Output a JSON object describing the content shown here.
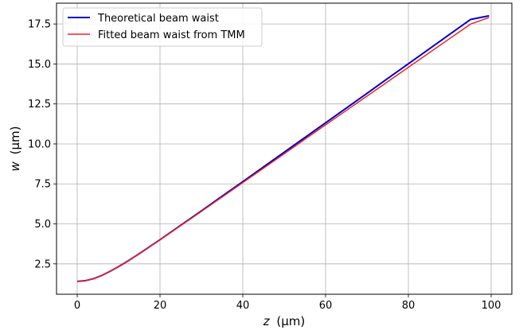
{
  "chart_data": {
    "type": "line",
    "xlabel_var": "z",
    "xlabel_unit": "(μm)",
    "ylabel_var": "w",
    "ylabel_unit": "(μm)",
    "xlim": [
      -5,
      105
    ],
    "ylim": [
      0.6,
      18.8
    ],
    "xticks": [
      0,
      20,
      40,
      60,
      80,
      100
    ],
    "yticks": [
      2.5,
      5.0,
      7.5,
      10.0,
      12.5,
      15.0,
      17.5
    ],
    "xtick_labels": [
      "0",
      "20",
      "40",
      "60",
      "80",
      "100"
    ],
    "ytick_labels": [
      "2.5",
      "5.0",
      "7.5",
      "10.0",
      "12.5",
      "15.0",
      "17.5"
    ],
    "grid": true,
    "legend_position": "top-left",
    "series": [
      {
        "name": "Theoretical beam waist",
        "color": "#0000cc",
        "x": [
          0,
          2,
          4,
          6,
          8,
          10,
          12,
          14,
          16,
          18,
          20,
          25,
          30,
          35,
          40,
          45,
          50,
          55,
          60,
          65,
          70,
          75,
          80,
          85,
          90,
          95,
          99.5
        ],
        "y": [
          1.4,
          1.45,
          1.58,
          1.78,
          2.04,
          2.33,
          2.64,
          2.97,
          3.31,
          3.66,
          4.01,
          4.91,
          5.81,
          6.73,
          7.64,
          8.56,
          9.48,
          10.4,
          11.32,
          12.24,
          13.16,
          14.09,
          15.01,
          15.93,
          16.86,
          17.78,
          18.01
        ]
      },
      {
        "name": "Fitted beam waist from TMM",
        "color": "#ee2222",
        "x": [
          0,
          2,
          4,
          6,
          8,
          10,
          12,
          14,
          16,
          18,
          20,
          25,
          30,
          35,
          40,
          45,
          50,
          55,
          60,
          65,
          70,
          75,
          80,
          85,
          90,
          95,
          99.5
        ],
        "y": [
          1.4,
          1.45,
          1.58,
          1.78,
          2.04,
          2.33,
          2.64,
          2.97,
          3.31,
          3.65,
          4.0,
          4.89,
          5.78,
          6.68,
          7.58,
          8.48,
          9.38,
          10.29,
          11.19,
          12.09,
          12.99,
          13.89,
          14.79,
          15.69,
          16.59,
          17.49,
          17.9
        ]
      }
    ]
  }
}
